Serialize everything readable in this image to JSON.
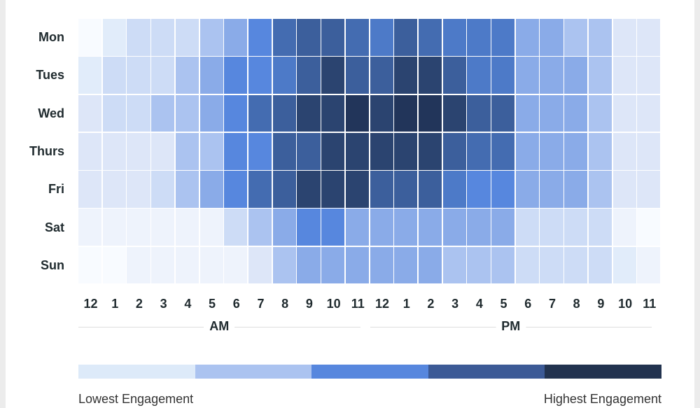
{
  "chart_data": {
    "type": "heatmap",
    "rows": [
      "Mon",
      "Tues",
      "Wed",
      "Thurs",
      "Fri",
      "Sat",
      "Sun"
    ],
    "columns": [
      "12",
      "1",
      "2",
      "3",
      "4",
      "5",
      "6",
      "7",
      "8",
      "9",
      "10",
      "11",
      "12",
      "1",
      "2",
      "3",
      "4",
      "5",
      "6",
      "7",
      "8",
      "9",
      "10",
      "11"
    ],
    "column_groups": [
      {
        "label": "AM",
        "span": 12
      },
      {
        "label": "PM",
        "span": 12
      }
    ],
    "value_range": [
      0,
      12
    ],
    "color_scale": [
      "#f8fbff",
      "#eef3fc",
      "#e1ecfa",
      "#dde6f8",
      "#cddcf6",
      "#abc3f0",
      "#8aabe8",
      "#5787de",
      "#4d7ac8",
      "#446cb1",
      "#3c5f9c",
      "#2b4470",
      "#22355a"
    ],
    "values": [
      [
        0,
        2,
        4,
        4,
        4,
        5,
        6,
        7,
        9,
        10,
        10,
        9,
        8,
        10,
        9,
        8,
        8,
        8,
        6,
        6,
        5,
        5,
        3,
        3
      ],
      [
        2,
        4,
        4,
        4,
        5,
        6,
        7,
        7,
        8,
        10,
        11,
        10,
        10,
        11,
        11,
        10,
        8,
        8,
        6,
        6,
        6,
        5,
        3,
        3
      ],
      [
        3,
        4,
        4,
        5,
        5,
        6,
        7,
        9,
        10,
        11,
        11,
        12,
        11,
        12,
        12,
        11,
        10,
        10,
        6,
        6,
        6,
        5,
        3,
        3
      ],
      [
        3,
        3,
        3,
        3,
        5,
        5,
        7,
        7,
        10,
        10,
        11,
        11,
        11,
        11,
        11,
        10,
        9,
        9,
        6,
        6,
        6,
        5,
        3,
        3
      ],
      [
        3,
        3,
        3,
        4,
        5,
        6,
        7,
        9,
        10,
        11,
        11,
        11,
        10,
        10,
        10,
        8,
        7,
        7,
        6,
        6,
        6,
        5,
        3,
        3
      ],
      [
        1,
        1,
        1,
        1,
        1,
        1,
        4,
        5,
        6,
        7,
        7,
        6,
        6,
        6,
        6,
        6,
        6,
        6,
        4,
        4,
        4,
        4,
        1,
        0
      ],
      [
        0,
        0,
        1,
        1,
        1,
        1,
        1,
        3,
        5,
        6,
        6,
        6,
        6,
        6,
        6,
        5,
        5,
        5,
        4,
        4,
        4,
        4,
        2,
        1
      ]
    ],
    "legend": {
      "colors": [
        "#ddeaf9",
        "#abc3f0",
        "#5787de",
        "#3c5a96",
        "#22334f"
      ],
      "low_label": "Lowest Engagement",
      "high_label": "Highest Engagement"
    }
  }
}
